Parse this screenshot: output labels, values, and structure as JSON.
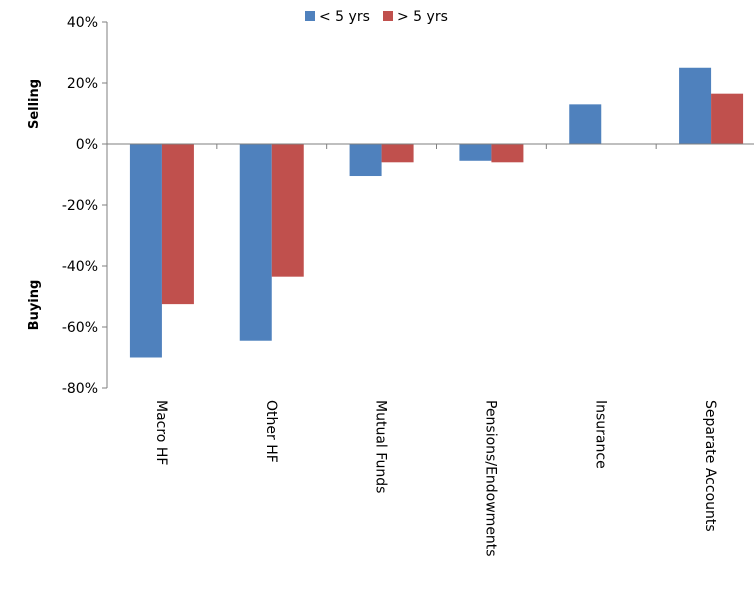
{
  "chart_data": {
    "type": "bar",
    "categories": [
      "Macro HF",
      "Other HF",
      "Mutual Funds",
      "Pensions/Endowments",
      "Insurance",
      "Separate Accounts"
    ],
    "series": [
      {
        "name": "< 5 yrs",
        "color": "#4f81bd",
        "values": [
          -70,
          -64.5,
          -10.5,
          -5.5,
          13,
          25
        ]
      },
      {
        "name": "> 5 yrs",
        "color": "#c0504d",
        "values": [
          -52.5,
          -43.5,
          -6,
          -6,
          0,
          16.5
        ]
      }
    ],
    "ylim": [
      -80,
      40
    ],
    "yticks": [
      40,
      20,
      0,
      -20,
      -40,
      -60,
      -80
    ],
    "ytick_labels": [
      "40%",
      "20%",
      "0%",
      "-20%",
      "-40%",
      "-60%",
      "-80%"
    ],
    "side_labels": {
      "upper": "Selling",
      "lower": "Buying"
    },
    "legend_position": "top-center",
    "grid": false,
    "title": "",
    "xlabel": "",
    "ylabel": ""
  }
}
